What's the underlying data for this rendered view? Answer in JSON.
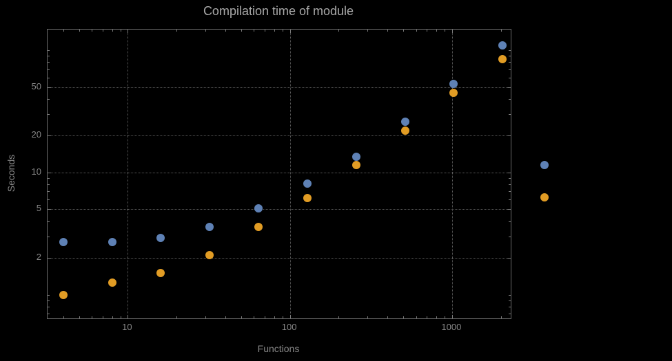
{
  "chart_data": {
    "type": "scatter",
    "title": "Compilation time of module",
    "xlabel": "Functions",
    "ylabel": "Seconds",
    "x_scale": "log",
    "y_scale": "log",
    "grid": true,
    "xlim": [
      3.2,
      2300
    ],
    "ylim": [
      0.64,
      148
    ],
    "x_ticks": [
      10,
      100,
      1000
    ],
    "x_tick_labels": [
      "10",
      "100",
      "1000"
    ],
    "y_ticks": [
      2,
      5,
      10,
      20,
      50
    ],
    "y_tick_labels": [
      "2",
      "5",
      "10",
      "20",
      "50"
    ],
    "x": [
      4,
      8,
      16,
      32,
      64,
      128,
      256,
      512,
      1024,
      2048
    ],
    "series": [
      {
        "name": "series-blue",
        "color": "#5E81B5",
        "values": [
          2.7,
          2.7,
          2.9,
          3.6,
          5.1,
          8.1,
          13.5,
          26,
          53,
          110
        ]
      },
      {
        "name": "series-orange",
        "color": "#E19C24",
        "values": [
          1.0,
          1.25,
          1.5,
          2.1,
          3.6,
          6.2,
          11.5,
          22,
          45,
          85
        ]
      }
    ],
    "legend_markers": [
      {
        "name": "legend-marker-blue",
        "color": "#5E81B5"
      },
      {
        "name": "legend-marker-orange",
        "color": "#E19C24"
      }
    ]
  },
  "colors": {
    "background": "#000000",
    "frame": "#6b6b6b",
    "grid": "#5c5c5c",
    "tick": "#7a7a7a",
    "text": "#878787",
    "title": "#a9a9a9"
  }
}
